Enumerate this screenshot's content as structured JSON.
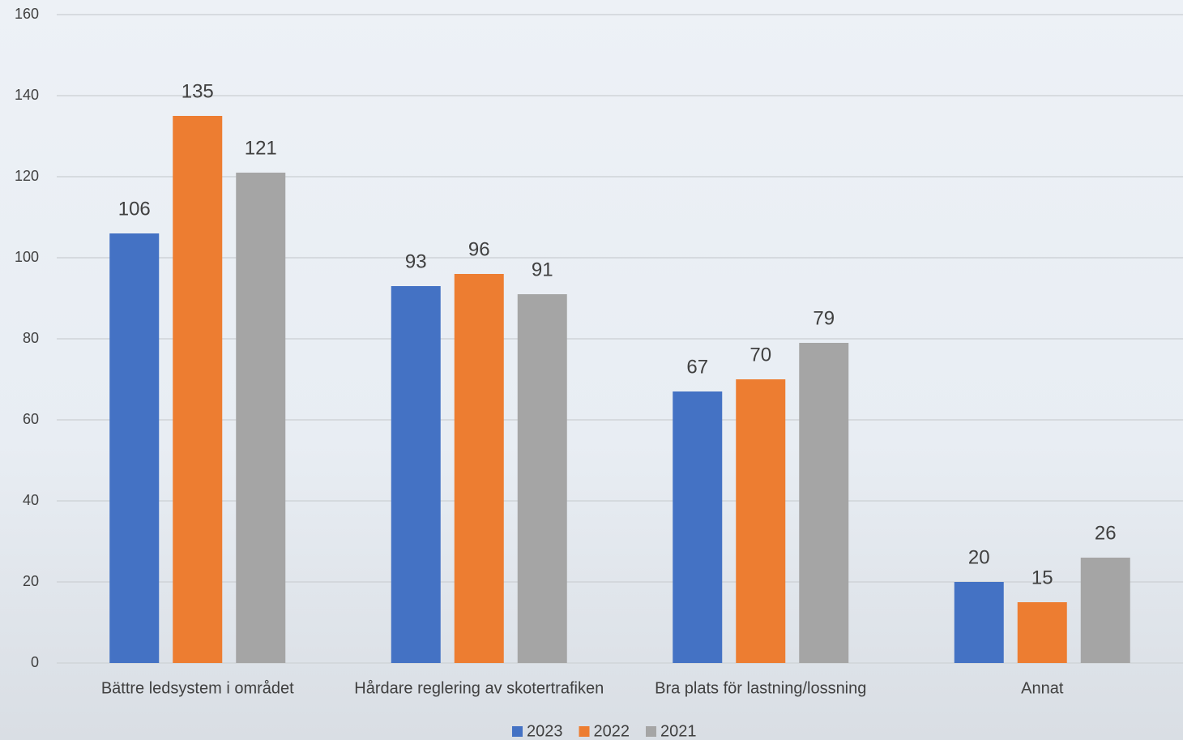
{
  "chart_data": {
    "type": "bar",
    "categories": [
      "Bättre ledsystem i området",
      "Hårdare reglering av skotertrafiken",
      "Bra plats för lastning/lossning",
      "Annat"
    ],
    "series": [
      {
        "name": "2023",
        "color": "#4472c4",
        "values": [
          106,
          93,
          67,
          20
        ]
      },
      {
        "name": "2022",
        "color": "#ed7d31",
        "values": [
          135,
          96,
          70,
          15
        ]
      },
      {
        "name": "2021",
        "color": "#a5a5a5",
        "values": [
          121,
          91,
          79,
          26
        ]
      }
    ],
    "ylim": [
      0,
      160
    ],
    "yticks": [
      0,
      20,
      40,
      60,
      80,
      100,
      120,
      140,
      160
    ],
    "grid": true,
    "legend": "bottom"
  }
}
